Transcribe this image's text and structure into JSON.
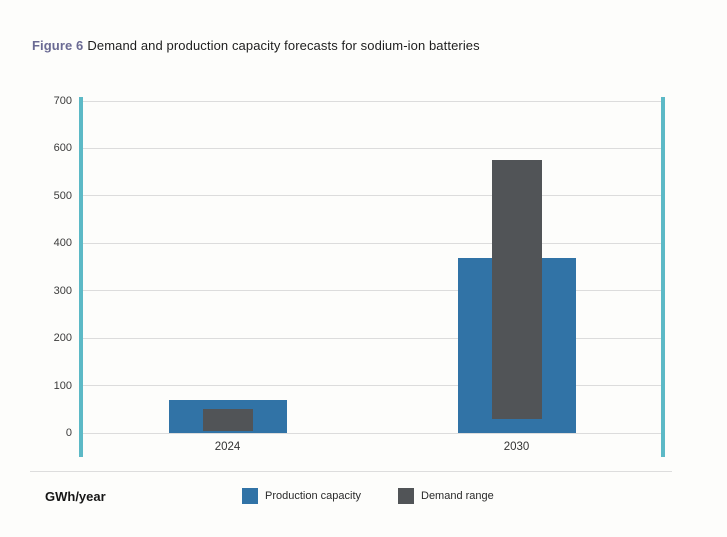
{
  "page": {
    "background": "#FDFDFB"
  },
  "figure": {
    "label": "Figure 6",
    "title": "Demand and production capacity forecasts for sodium-ion batteries"
  },
  "chart_data": {
    "type": "bar",
    "title": "Demand and production capacity forecasts for sodium-ion batteries",
    "categories": [
      "2024",
      "2030"
    ],
    "series": [
      {
        "name": "Production capacity",
        "bar_style": "column-from-zero",
        "color": "#3173A6",
        "values": [
          70,
          370
        ]
      },
      {
        "name": "Demand range",
        "bar_style": "floating-range",
        "color": "#515457",
        "ranges": [
          [
            5,
            50
          ],
          [
            30,
            575
          ]
        ]
      }
    ],
    "xlabel": "",
    "ylabel": "GWh/year",
    "ylim": [
      0,
      700
    ],
    "yticks": [
      0,
      100,
      200,
      300,
      400,
      500,
      600,
      700
    ],
    "grid": "horizontal",
    "gridline_color": "#DCDCDC",
    "axis_line_color": "#5CB9C6",
    "tick_label_color": "#3B3B3B",
    "legend_position": "bottom"
  },
  "legend": {
    "items": [
      {
        "label": "Production capacity",
        "color": "#3173A6"
      },
      {
        "label": "Demand range",
        "color": "#515457"
      }
    ]
  },
  "colors": {
    "figure_label": "#6A6A93",
    "title_text": "#1E1E1E"
  }
}
